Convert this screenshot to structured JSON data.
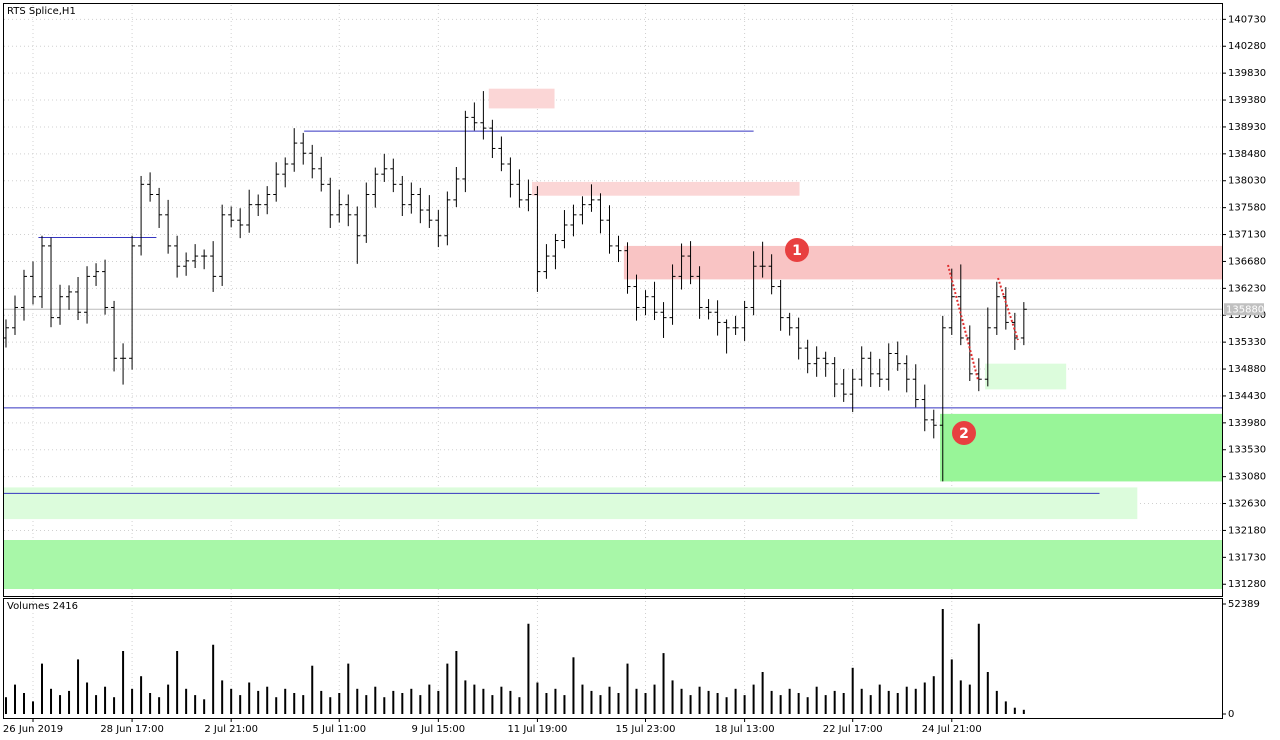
{
  "chart_data": [
    {
      "type": "ohlc",
      "title": "RTS Splice,H1",
      "color": "#000000",
      "grid": true,
      "xlim": [
        -0.22,
        135
      ],
      "ylim": [
        131100,
        140970
      ],
      "yticks": [
        140730,
        140280,
        139830,
        139380,
        138930,
        138480,
        138030,
        137580,
        137130,
        136680,
        136230,
        135780,
        135330,
        134880,
        134430,
        133980,
        133530,
        133080,
        132630,
        132180,
        131730,
        131280
      ],
      "xticks": [
        {
          "value": 3,
          "label": "26 Jun 2019"
        },
        {
          "value": 14,
          "label": "28 Jun 17:00"
        },
        {
          "value": 25,
          "label": "2 Jul 21:00"
        },
        {
          "value": 37,
          "label": "5 Jul 11:00"
        },
        {
          "value": 48,
          "label": "9 Jul 15:00"
        },
        {
          "value": 59,
          "label": "11 Jul 19:00"
        },
        {
          "value": 71,
          "label": "15 Jul 23:00"
        },
        {
          "value": 82,
          "label": "18 Jul 13:00"
        },
        {
          "value": 94,
          "label": "22 Jul 17:00"
        },
        {
          "value": 105,
          "label": "24 Jul 21:00"
        }
      ],
      "current_price": 135880,
      "ohlc": [
        [
          135400,
          135710,
          135240,
          135570
        ],
        [
          135570,
          136110,
          135450,
          135910
        ],
        [
          135910,
          136540,
          135690,
          136430
        ],
        [
          136430,
          136680,
          135960,
          136090
        ],
        [
          136090,
          137110,
          135900,
          136940
        ],
        [
          136940,
          137080,
          135580,
          135740
        ],
        [
          135740,
          136290,
          135620,
          136090
        ],
        [
          136090,
          136280,
          135870,
          136170
        ],
        [
          136170,
          136420,
          135700,
          135830
        ],
        [
          135830,
          136600,
          135640,
          136430
        ],
        [
          136430,
          136650,
          136270,
          136510
        ],
        [
          136510,
          136710,
          135790,
          135910
        ],
        [
          135910,
          136020,
          134840,
          135060
        ],
        [
          135060,
          135310,
          134620,
          135060
        ],
        [
          135060,
          137110,
          134870,
          136940
        ],
        [
          136940,
          138110,
          136780,
          137970
        ],
        [
          137970,
          138170,
          137680,
          137800
        ],
        [
          137800,
          137910,
          137240,
          137460
        ],
        [
          137460,
          137710,
          136810,
          136940
        ],
        [
          136940,
          137110,
          136410,
          136600
        ],
        [
          136600,
          136830,
          136440,
          136690
        ],
        [
          136690,
          136970,
          136570,
          136770
        ],
        [
          136770,
          136880,
          136550,
          136770
        ],
        [
          136770,
          137020,
          136170,
          136430
        ],
        [
          136430,
          137630,
          136270,
          137460
        ],
        [
          137460,
          137600,
          137250,
          137370
        ],
        [
          137370,
          137570,
          137070,
          137290
        ],
        [
          137290,
          137880,
          137160,
          137630
        ],
        [
          137630,
          137800,
          137440,
          137630
        ],
        [
          137630,
          137940,
          137470,
          137800
        ],
        [
          137800,
          138340,
          137680,
          138140
        ],
        [
          138140,
          138420,
          137920,
          138310
        ],
        [
          138310,
          138910,
          138180,
          138660
        ],
        [
          138660,
          138830,
          138300,
          138490
        ],
        [
          138490,
          138630,
          138070,
          138230
        ],
        [
          138230,
          138430,
          137850,
          137970
        ],
        [
          137970,
          138080,
          137240,
          137460
        ],
        [
          137460,
          137880,
          137330,
          137630
        ],
        [
          137630,
          137800,
          137270,
          137460
        ],
        [
          137460,
          137600,
          136640,
          137110
        ],
        [
          137110,
          138000,
          136990,
          137800
        ],
        [
          137800,
          138250,
          137580,
          138140
        ],
        [
          138140,
          138480,
          138010,
          138230
        ],
        [
          138230,
          138400,
          137840,
          137970
        ],
        [
          137970,
          138110,
          137440,
          137630
        ],
        [
          137630,
          138000,
          137480,
          137800
        ],
        [
          137800,
          137910,
          137320,
          137540
        ],
        [
          137540,
          137790,
          137240,
          137370
        ],
        [
          137370,
          137540,
          136920,
          137110
        ],
        [
          137110,
          137850,
          136950,
          137710
        ],
        [
          137710,
          138260,
          137590,
          138060
        ],
        [
          138060,
          139200,
          137840,
          139090
        ],
        [
          139090,
          139340,
          138870,
          139000
        ],
        [
          139000,
          139530,
          138720,
          138910
        ],
        [
          138910,
          139050,
          138410,
          138570
        ],
        [
          138570,
          138770,
          138190,
          138310
        ],
        [
          138310,
          138420,
          137750,
          137970
        ],
        [
          137970,
          138220,
          137580,
          137710
        ],
        [
          137710,
          138050,
          137520,
          137800
        ],
        [
          137800,
          137940,
          136170,
          136510
        ],
        [
          136510,
          136970,
          136390,
          136770
        ],
        [
          136770,
          137140,
          136550,
          137030
        ],
        [
          137030,
          137540,
          136900,
          137290
        ],
        [
          137290,
          137630,
          137100,
          137460
        ],
        [
          137460,
          137770,
          137300,
          137630
        ],
        [
          137630,
          137970,
          137510,
          137710
        ],
        [
          137710,
          137820,
          137150,
          137370
        ],
        [
          137370,
          137620,
          136810,
          136940
        ],
        [
          136940,
          137110,
          136670,
          136860
        ],
        [
          136860,
          137000,
          136140,
          136260
        ],
        [
          136260,
          136460,
          135690,
          135910
        ],
        [
          135910,
          136200,
          135780,
          136090
        ],
        [
          136090,
          136340,
          135700,
          135830
        ],
        [
          135830,
          136000,
          135400,
          135740
        ],
        [
          135740,
          136630,
          135620,
          136430
        ],
        [
          136430,
          136980,
          136210,
          136770
        ],
        [
          136770,
          137020,
          136300,
          136430
        ],
        [
          136430,
          136600,
          135720,
          135910
        ],
        [
          135910,
          136050,
          135710,
          135830
        ],
        [
          135830,
          136030,
          135440,
          135660
        ],
        [
          135660,
          135710,
          135140,
          135570
        ],
        [
          135570,
          135770,
          135450,
          135570
        ],
        [
          135570,
          136020,
          135350,
          135910
        ],
        [
          135910,
          136850,
          135780,
          136600
        ],
        [
          136600,
          137010,
          136410,
          136600
        ],
        [
          136600,
          136800,
          136130,
          136260
        ],
        [
          136260,
          136370,
          135520,
          135740
        ],
        [
          135740,
          135820,
          135440,
          135570
        ],
        [
          135570,
          135740,
          135040,
          135230
        ],
        [
          135230,
          135370,
          134810,
          134970
        ],
        [
          134970,
          135260,
          134750,
          135060
        ],
        [
          135060,
          135170,
          134750,
          134970
        ],
        [
          134970,
          135080,
          134410,
          134630
        ],
        [
          134630,
          134880,
          134330,
          134460
        ],
        [
          134460,
          134880,
          134160,
          134710
        ],
        [
          134710,
          135260,
          134590,
          135060
        ],
        [
          135060,
          135170,
          134580,
          134800
        ],
        [
          134800,
          135050,
          134580,
          134710
        ],
        [
          134710,
          135310,
          134520,
          135140
        ],
        [
          135140,
          135340,
          134850,
          134970
        ],
        [
          134970,
          135110,
          134490,
          134710
        ],
        [
          134710,
          134960,
          134240,
          134370
        ],
        [
          134370,
          134620,
          133840,
          134030
        ],
        [
          134030,
          134200,
          133720,
          133940
        ],
        [
          133940,
          135770,
          133000,
          135570
        ],
        [
          135570,
          136560,
          135450,
          136090
        ],
        [
          136090,
          136630,
          135280,
          135400
        ],
        [
          135400,
          135610,
          134680,
          134800
        ],
        [
          134800,
          135060,
          134510,
          134710
        ],
        [
          134710,
          135910,
          134590,
          135570
        ],
        [
          135570,
          136340,
          135450,
          136090
        ],
        [
          136090,
          136250,
          135540,
          135660
        ],
        [
          135660,
          135820,
          135200,
          135400
        ],
        [
          135400,
          136000,
          135280,
          135880
        ]
      ],
      "zones": [
        {
          "x0": 53.6,
          "x1": 60.9,
          "y0": 139240,
          "y1": 139570,
          "color": "#fbd6d6"
        },
        {
          "x0": 58.4,
          "x1": 88.1,
          "y0": 137780,
          "y1": 138010,
          "color": "#fbd6d6"
        },
        {
          "x0": 68.6,
          "x1": 135,
          "y0": 136380,
          "y1": 136940,
          "color": "#f9c4c4"
        },
        {
          "x0": 108.7,
          "x1": 117.7,
          "y0": 134540,
          "y1": 134970,
          "color": "#dcfcdc"
        },
        {
          "x0": 103.7,
          "x1": 135,
          "y0": 133000,
          "y1": 134130,
          "color": "#98f598"
        },
        {
          "x0": -0.22,
          "x1": 125.6,
          "y0": 132370,
          "y1": 132900,
          "color": "#dcfcdc"
        },
        {
          "x0": -0.22,
          "x1": 135,
          "y0": 131200,
          "y1": 132020,
          "color": "#a8f7a8"
        }
      ],
      "levels": [
        {
          "x0": 3.6,
          "x1": 16.7,
          "price": 137080,
          "color": "#3535c0"
        },
        {
          "x0": 33.1,
          "x1": 83,
          "price": 138860,
          "color": "#3535c0"
        },
        {
          "x0": -0.22,
          "x1": 135,
          "price": 134230,
          "color": "#3535c0"
        },
        {
          "x0": -0.22,
          "x1": 121.4,
          "price": 132800,
          "color": "#3535c0"
        }
      ],
      "annotations": [
        "1",
        "2"
      ]
    },
    {
      "type": "bar",
      "title": "Volumes 2416",
      "color": "#000000",
      "xlim": [
        -0.22,
        135
      ],
      "ylim": [
        0,
        52389
      ],
      "yticks": [
        52389,
        0
      ],
      "values": [
        8000,
        14000,
        10000,
        6000,
        24000,
        12000,
        9000,
        11000,
        26000,
        15000,
        9000,
        13000,
        8000,
        30000,
        12000,
        18000,
        10000,
        8000,
        14000,
        30000,
        12000,
        9000,
        7000,
        33000,
        16000,
        12000,
        9000,
        15000,
        11000,
        13000,
        8000,
        12000,
        10000,
        9000,
        23000,
        11000,
        8000,
        10000,
        24000,
        12000,
        9000,
        13000,
        8000,
        11000,
        10000,
        12000,
        9000,
        14000,
        11000,
        24000,
        30000,
        16000,
        14000,
        12000,
        9000,
        13000,
        11000,
        8000,
        43000,
        15000,
        10000,
        12000,
        9000,
        27000,
        14000,
        11000,
        9000,
        13000,
        10000,
        24000,
        12000,
        10000,
        14000,
        29000,
        16000,
        12000,
        9000,
        13000,
        11000,
        10000,
        8000,
        12000,
        9000,
        14000,
        20000,
        11000,
        9000,
        12000,
        10000,
        8000,
        13000,
        9000,
        11000,
        10000,
        22000,
        12000,
        9000,
        14000,
        11000,
        10000,
        13000,
        12000,
        15000,
        18000,
        50000,
        26000,
        16000,
        14000,
        43000,
        20000,
        11000,
        6000,
        3000,
        2000
      ]
    }
  ]
}
